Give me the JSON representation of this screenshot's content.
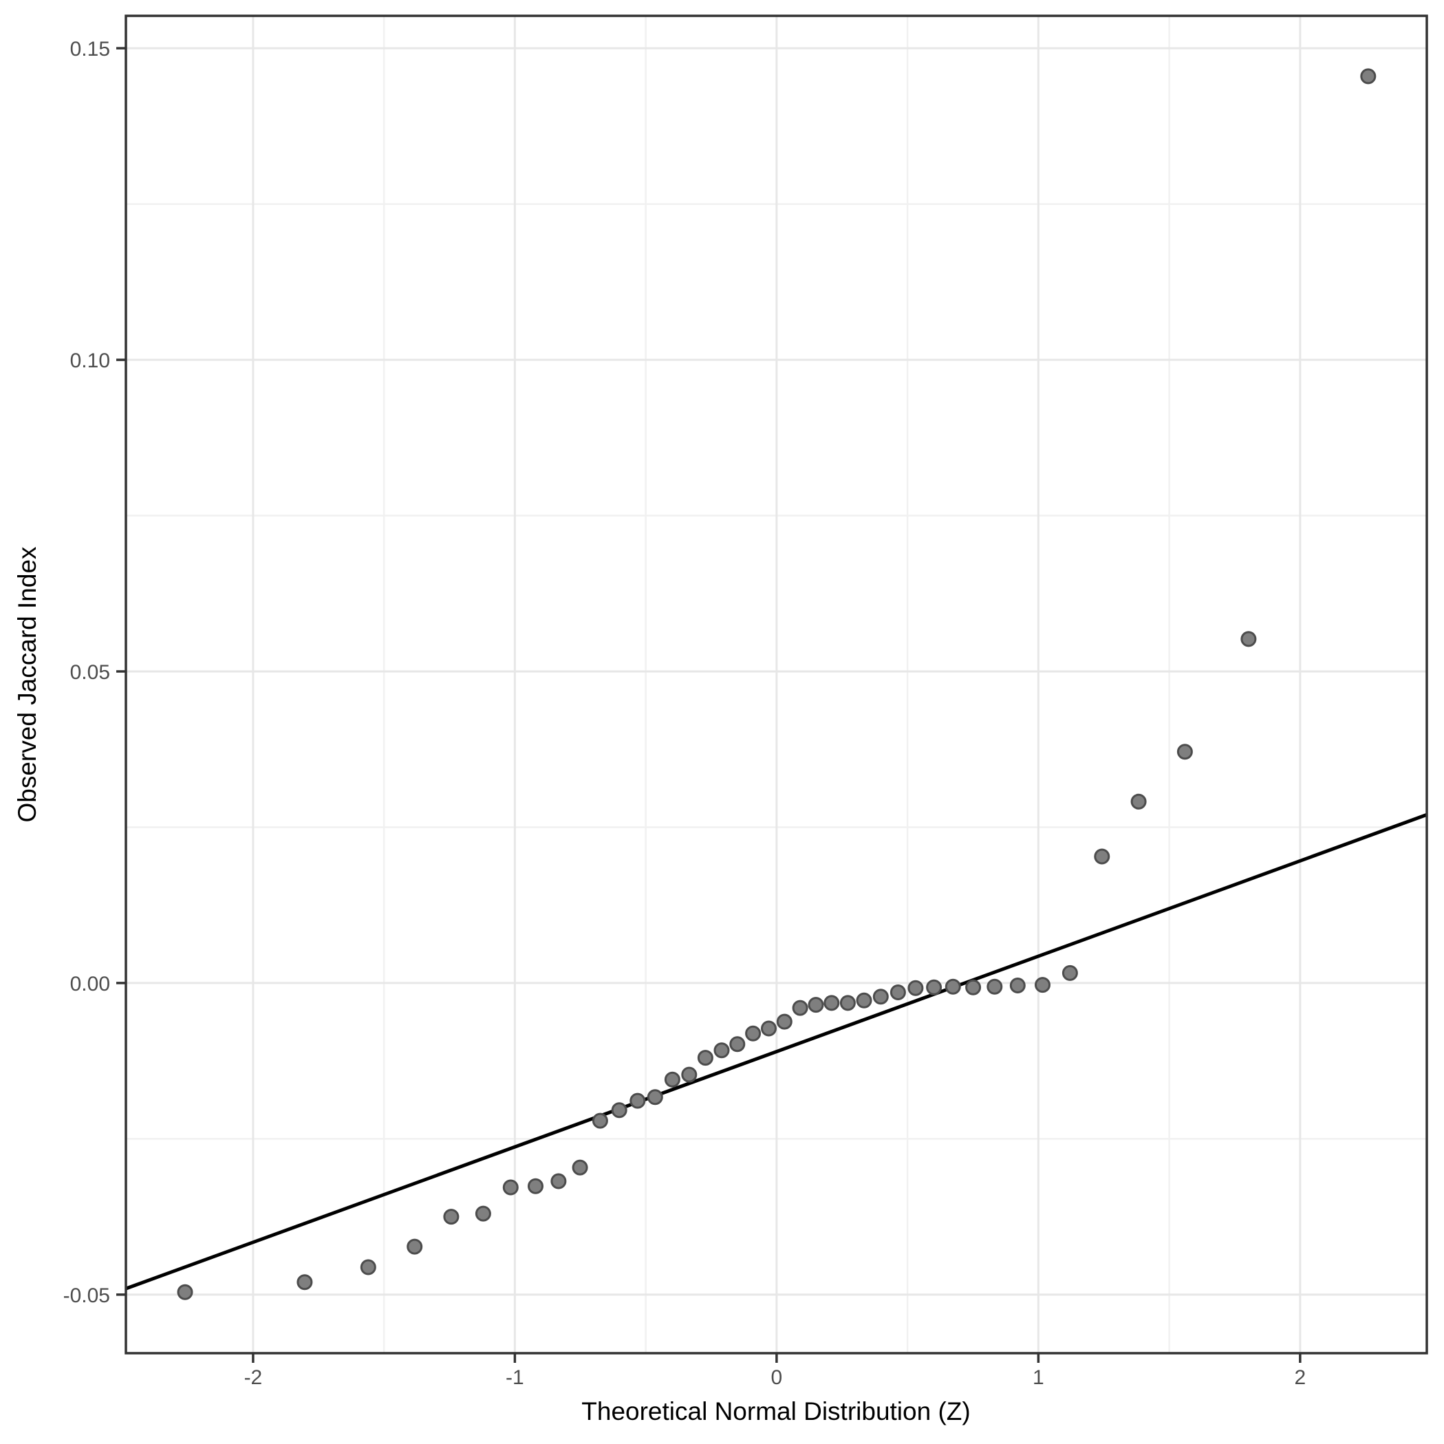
{
  "page": {
    "background": "#ffffff"
  },
  "chart_data": {
    "type": "scatter",
    "title": "",
    "xlabel": "Theoretical Normal Distribution (Z)",
    "ylabel": "Observed Jaccard Index",
    "xlim": [
      -2.486,
      2.484
    ],
    "ylim": [
      -0.0594,
      0.1552
    ],
    "grid": {
      "major": true,
      "minor": true
    },
    "legend": "none",
    "x_ticks": [
      {
        "value": -2,
        "label": "-2"
      },
      {
        "value": -1,
        "label": "-1"
      },
      {
        "value": 0,
        "label": "0"
      },
      {
        "value": 1,
        "label": "1"
      },
      {
        "value": 2,
        "label": "2"
      }
    ],
    "x_minor_ticks": [
      -1.5,
      -0.5,
      0.5,
      1.5
    ],
    "y_ticks": [
      {
        "value": 0.15,
        "label": "0.15"
      },
      {
        "value": 0.1,
        "label": "0.10"
      },
      {
        "value": 0.05,
        "label": "0.05"
      },
      {
        "value": 0.0,
        "label": "0.00"
      },
      {
        "value": -0.05,
        "label": "-0.05"
      }
    ],
    "y_minor_ticks": [
      0.125,
      0.075,
      0.025,
      -0.025
    ],
    "reference_line": {
      "slope": 0.0153,
      "intercept": -0.011
    },
    "series": [
      {
        "name": "sample-quantiles",
        "points": [
          [
            -2.26,
            -0.0496
          ],
          [
            -1.803,
            -0.048
          ],
          [
            -1.56,
            -0.0456
          ],
          [
            -1.383,
            -0.0423
          ],
          [
            -1.243,
            -0.0375
          ],
          [
            -1.121,
            -0.037
          ],
          [
            -1.016,
            -0.0328
          ],
          [
            -0.921,
            -0.0326
          ],
          [
            -0.833,
            -0.0318
          ],
          [
            -0.751,
            -0.0296
          ],
          [
            -0.674,
            -0.0221
          ],
          [
            -0.601,
            -0.0204
          ],
          [
            -0.531,
            -0.0189
          ],
          [
            -0.464,
            -0.0183
          ],
          [
            -0.398,
            -0.0155
          ],
          [
            -0.334,
            -0.0147
          ],
          [
            -0.272,
            -0.012
          ],
          [
            -0.21,
            -0.0108
          ],
          [
            -0.15,
            -0.0098
          ],
          [
            -0.09,
            -0.0081
          ],
          [
            -0.03,
            -0.0073
          ],
          [
            0.03,
            -0.0062
          ],
          [
            0.09,
            -0.004
          ],
          [
            0.15,
            -0.0035
          ],
          [
            0.21,
            -0.0032
          ],
          [
            0.272,
            -0.0032
          ],
          [
            0.334,
            -0.0028
          ],
          [
            0.398,
            -0.0022
          ],
          [
            0.464,
            -0.0015
          ],
          [
            0.531,
            -0.0008
          ],
          [
            0.601,
            -0.0007
          ],
          [
            0.674,
            -0.0006
          ],
          [
            0.751,
            -0.0007
          ],
          [
            0.833,
            -0.0006
          ],
          [
            0.921,
            -0.0004
          ],
          [
            1.016,
            -0.0003
          ],
          [
            1.121,
            0.0016
          ],
          [
            1.243,
            0.0203
          ],
          [
            1.383,
            0.0291
          ],
          [
            1.56,
            0.0371
          ],
          [
            1.803,
            0.0552
          ],
          [
            2.26,
            0.1455
          ]
        ]
      }
    ]
  },
  "style": {
    "background": "#ffffff",
    "panel_border_color": "#333333",
    "grid_major_color": "#e7e7e7",
    "grid_minor_color": "#f1f1f1",
    "reference_line_color": "#000000",
    "point_fill": "#7f7f7f",
    "point_stroke": "#4c4c4c",
    "tick_mark_color": "#333333",
    "tick_label_color": "#4d4d4d",
    "axis_title_color": "#000000"
  }
}
